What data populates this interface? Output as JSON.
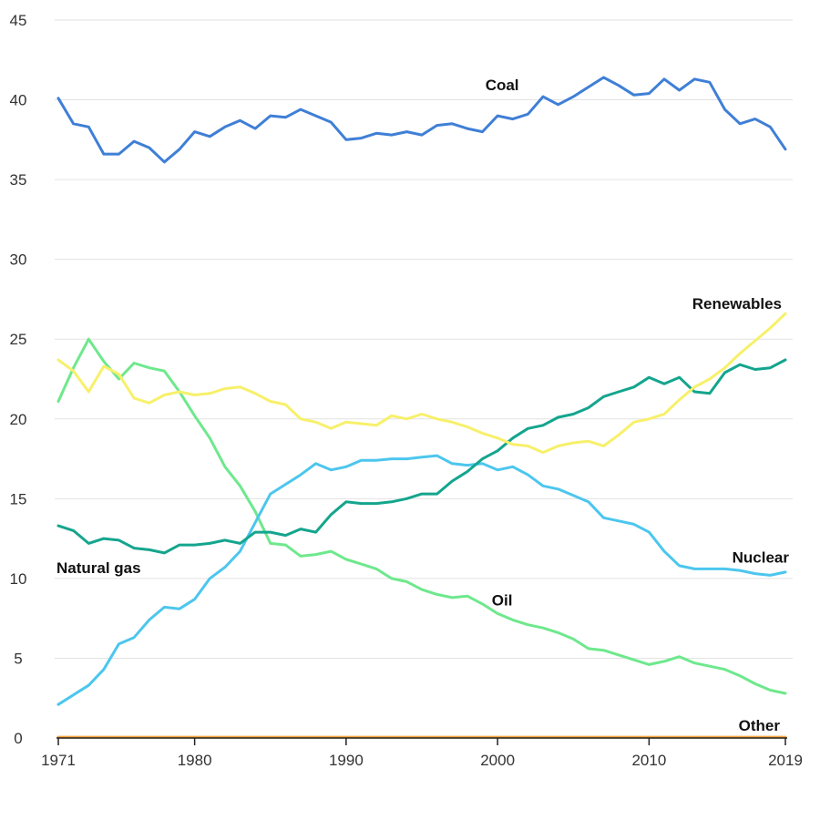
{
  "chart_data": {
    "type": "line",
    "title": "",
    "xlabel": "",
    "ylabel": "",
    "xlim": [
      1971,
      2019
    ],
    "ylim": [
      0,
      45
    ],
    "grid": true,
    "x_ticks": [
      1971,
      1980,
      1990,
      2000,
      2010,
      2019
    ],
    "x_tick_labels": [
      "1971",
      "1980",
      "1990",
      "2000",
      "2010",
      "2019"
    ],
    "y_ticks": [
      0,
      5,
      10,
      15,
      20,
      25,
      30,
      35,
      40,
      45
    ],
    "y_tick_labels": [
      "0",
      "5",
      "10",
      "15",
      "20",
      "25",
      "30",
      "35",
      "40",
      "45"
    ],
    "x": [
      1971,
      1972,
      1973,
      1974,
      1975,
      1976,
      1977,
      1978,
      1979,
      1980,
      1981,
      1982,
      1983,
      1984,
      1985,
      1986,
      1987,
      1988,
      1989,
      1990,
      1991,
      1992,
      1993,
      1994,
      1995,
      1996,
      1997,
      1998,
      1999,
      2000,
      2001,
      2002,
      2003,
      2004,
      2005,
      2006,
      2007,
      2008,
      2009,
      2010,
      2011,
      2012,
      2013,
      2014,
      2015,
      2016,
      2017,
      2018,
      2019
    ],
    "series": [
      {
        "name": "Coal",
        "label": "Coal",
        "color": "#3f7fd6",
        "values": [
          40.1,
          38.5,
          38.3,
          36.6,
          36.6,
          37.4,
          37.0,
          36.1,
          36.9,
          38.0,
          37.7,
          38.3,
          38.7,
          38.2,
          39.0,
          38.9,
          39.4,
          39.0,
          38.6,
          37.5,
          37.6,
          37.9,
          37.8,
          38.0,
          37.8,
          38.4,
          38.5,
          38.2,
          38.0,
          39.0,
          38.8,
          39.1,
          40.2,
          39.7,
          40.2,
          40.8,
          41.4,
          40.9,
          40.3,
          40.4,
          41.3,
          40.6,
          41.3,
          41.1,
          39.4,
          38.5,
          38.8,
          38.3,
          36.9
        ]
      },
      {
        "name": "Renewables",
        "label": "Renewables",
        "color": "#f7f06a",
        "values": [
          23.7,
          23.0,
          21.7,
          23.3,
          22.8,
          21.3,
          21.0,
          21.5,
          21.7,
          21.5,
          21.6,
          21.9,
          22.0,
          21.6,
          21.1,
          20.9,
          20.0,
          19.8,
          19.4,
          19.8,
          19.7,
          19.6,
          20.2,
          20.0,
          20.3,
          20.0,
          19.8,
          19.5,
          19.1,
          18.8,
          18.4,
          18.3,
          17.9,
          18.3,
          18.5,
          18.6,
          18.3,
          19.0,
          19.8,
          20.0,
          20.3,
          21.2,
          22.0,
          22.5,
          23.2,
          24.1,
          24.9,
          25.7,
          26.6
        ]
      },
      {
        "name": "Natural gas",
        "label": "Natural gas",
        "color": "#14a58d",
        "values": [
          13.3,
          13.0,
          12.2,
          12.5,
          12.4,
          11.9,
          11.8,
          11.6,
          12.1,
          12.1,
          12.2,
          12.4,
          12.2,
          12.9,
          12.9,
          12.7,
          13.1,
          12.9,
          14.0,
          14.8,
          14.7,
          14.7,
          14.8,
          15.0,
          15.3,
          15.3,
          16.1,
          16.7,
          17.5,
          18.0,
          18.8,
          19.4,
          19.6,
          20.1,
          20.3,
          20.7,
          21.4,
          21.7,
          22.0,
          22.6,
          22.2,
          22.6,
          21.7,
          21.6,
          22.9,
          23.4,
          23.1,
          23.2,
          23.7
        ]
      },
      {
        "name": "Nuclear",
        "label": "Nuclear",
        "color": "#4cc6ee",
        "values": [
          2.1,
          2.7,
          3.3,
          4.3,
          5.9,
          6.3,
          7.4,
          8.2,
          8.1,
          8.7,
          10.0,
          10.7,
          11.7,
          13.5,
          15.3,
          15.9,
          16.5,
          17.2,
          16.8,
          17.0,
          17.4,
          17.4,
          17.5,
          17.5,
          17.6,
          17.7,
          17.2,
          17.1,
          17.2,
          16.8,
          17.0,
          16.5,
          15.8,
          15.6,
          15.2,
          14.8,
          13.8,
          13.6,
          13.4,
          12.9,
          11.7,
          10.8,
          10.6,
          10.6,
          10.6,
          10.5,
          10.3,
          10.2,
          10.4
        ]
      },
      {
        "name": "Oil",
        "label": "Oil",
        "color": "#6ee88c",
        "values": [
          21.1,
          23.2,
          25.0,
          23.6,
          22.5,
          23.5,
          23.2,
          23.0,
          21.7,
          20.2,
          18.8,
          17.0,
          15.8,
          14.2,
          12.2,
          12.1,
          11.4,
          11.5,
          11.7,
          11.2,
          10.9,
          10.6,
          10.0,
          9.8,
          9.3,
          9.0,
          8.8,
          8.9,
          8.4,
          7.8,
          7.4,
          7.1,
          6.9,
          6.6,
          6.2,
          5.6,
          5.5,
          5.2,
          4.9,
          4.6,
          4.8,
          5.1,
          4.7,
          4.5,
          4.3,
          3.9,
          3.4,
          3.0,
          2.8
        ]
      },
      {
        "name": "Other",
        "label": "Other",
        "color": "#f7a23b",
        "values": [
          0.05,
          0.05,
          0.05,
          0.05,
          0.05,
          0.05,
          0.05,
          0.05,
          0.05,
          0.05,
          0.05,
          0.05,
          0.05,
          0.05,
          0.05,
          0.05,
          0.05,
          0.05,
          0.05,
          0.05,
          0.05,
          0.05,
          0.05,
          0.05,
          0.05,
          0.05,
          0.05,
          0.05,
          0.05,
          0.05,
          0.05,
          0.05,
          0.05,
          0.05,
          0.05,
          0.05,
          0.05,
          0.05,
          0.05,
          0.05,
          0.05,
          0.05,
          0.05,
          0.05,
          0.05,
          0.05,
          0.05,
          0.05,
          0.05
        ]
      }
    ],
    "series_label_positions": [
      {
        "series": "Coal",
        "label_at": "above-line-near-2000"
      },
      {
        "series": "Renewables",
        "label_at": "above-end-right"
      },
      {
        "series": "Natural gas",
        "label_at": "below-start-left"
      },
      {
        "series": "Nuclear",
        "label_at": "above-end-right"
      },
      {
        "series": "Oil",
        "label_at": "above-line-near-2001"
      },
      {
        "series": "Other",
        "label_at": "above-end-right"
      }
    ]
  }
}
